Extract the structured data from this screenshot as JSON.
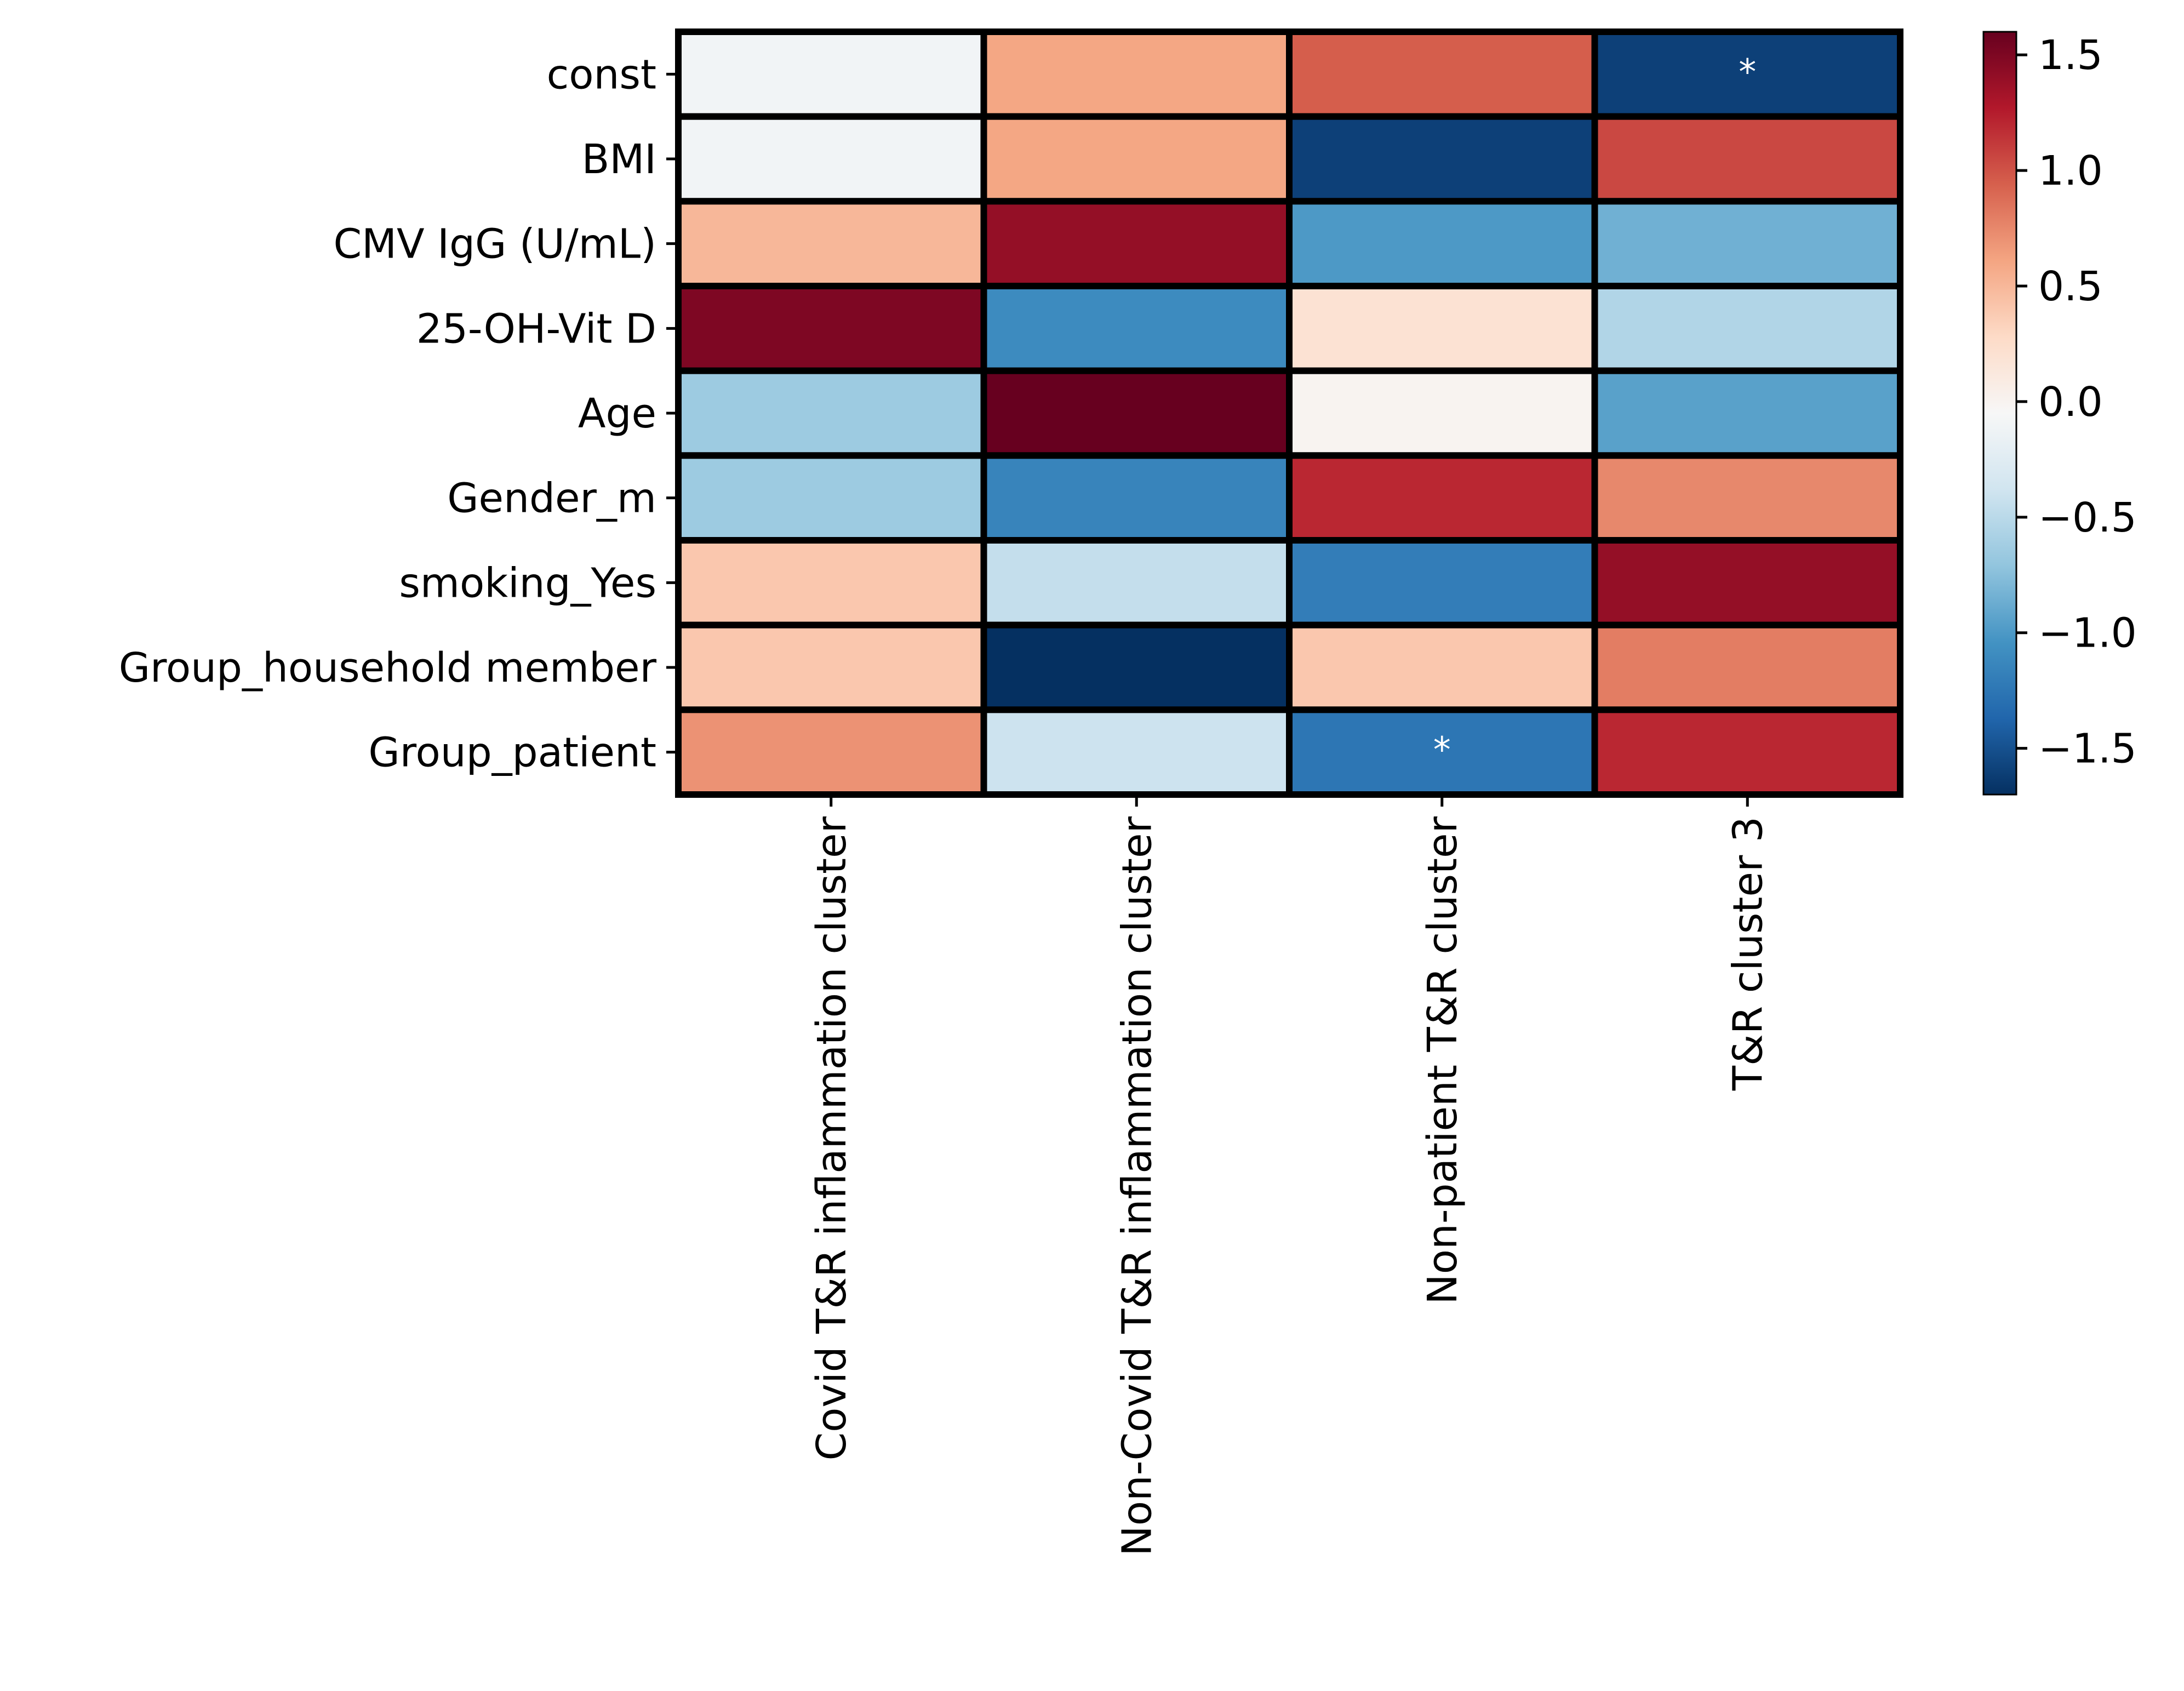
{
  "chart_data": {
    "type": "heatmap",
    "rows": [
      "const",
      "BMI",
      "CMV IgG (U/mL)",
      "25-OH-Vit D",
      "Age",
      "Gender_m",
      "smoking_Yes",
      "Group_household member",
      "Group_patient"
    ],
    "columns": [
      "Covid T&R inflammation cluster",
      "Non-Covid T&R inflammation cluster",
      "Non-patient T&R cluster",
      "T&R cluster 3"
    ],
    "values": [
      [
        -0.1,
        0.6,
        0.95,
        -1.6
      ],
      [
        -0.1,
        0.6,
        -1.6,
        1.05
      ],
      [
        0.5,
        1.4,
        -1.0,
        -0.85
      ],
      [
        1.5,
        -1.1,
        0.2,
        -0.55
      ],
      [
        -0.65,
        1.6,
        0.0,
        -0.95
      ],
      [
        -0.65,
        -1.15,
        1.2,
        0.75
      ],
      [
        0.4,
        -0.45,
        -1.2,
        1.4
      ],
      [
        0.4,
        -1.7,
        0.4,
        0.8
      ],
      [
        0.7,
        -0.4,
        -1.25,
        1.2
      ]
    ],
    "annotations": [
      {
        "row": 0,
        "col": 3,
        "text": "*"
      },
      {
        "row": 8,
        "col": 2,
        "text": "*"
      }
    ],
    "colormap": "RdBu_r",
    "vmin": -1.7,
    "vmax": 1.6,
    "colorbar": {
      "ticks": [
        1.5,
        1.0,
        0.5,
        0.0,
        -0.5,
        -1.0,
        -1.5
      ],
      "tick_labels": [
        "1.5",
        "1.0",
        "0.5",
        "0.0",
        "−0.5",
        "−1.0",
        "−1.5"
      ]
    }
  }
}
